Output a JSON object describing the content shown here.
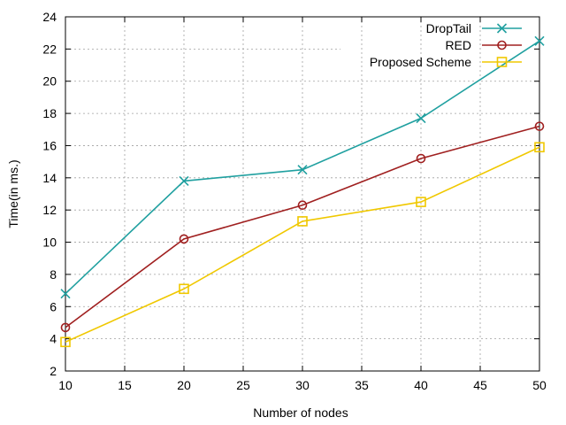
{
  "chart_data": {
    "type": "line",
    "title": "",
    "xlabel": "Number of nodes",
    "ylabel": "Time(in ms.)",
    "xlim": [
      10,
      50
    ],
    "ylim": [
      2,
      24
    ],
    "xticks": [
      10,
      15,
      20,
      25,
      30,
      35,
      40,
      45,
      50
    ],
    "yticks": [
      2,
      4,
      6,
      8,
      10,
      12,
      14,
      16,
      18,
      20,
      22,
      24
    ],
    "grid": true,
    "legend_position": "top-right",
    "x": [
      10,
      20,
      30,
      40,
      50
    ],
    "series": [
      {
        "name": "DropTail",
        "marker": "x",
        "color": "#20a0a0",
        "values": [
          6.8,
          13.8,
          14.5,
          17.7,
          22.5
        ]
      },
      {
        "name": "RED",
        "marker": "circle",
        "color": "#a02020",
        "values": [
          4.7,
          10.2,
          12.3,
          15.2,
          17.2
        ]
      },
      {
        "name": "Proposed Scheme",
        "marker": "square",
        "color": "#f0c800",
        "values": [
          3.8,
          7.1,
          11.3,
          12.5,
          15.9
        ]
      }
    ]
  }
}
